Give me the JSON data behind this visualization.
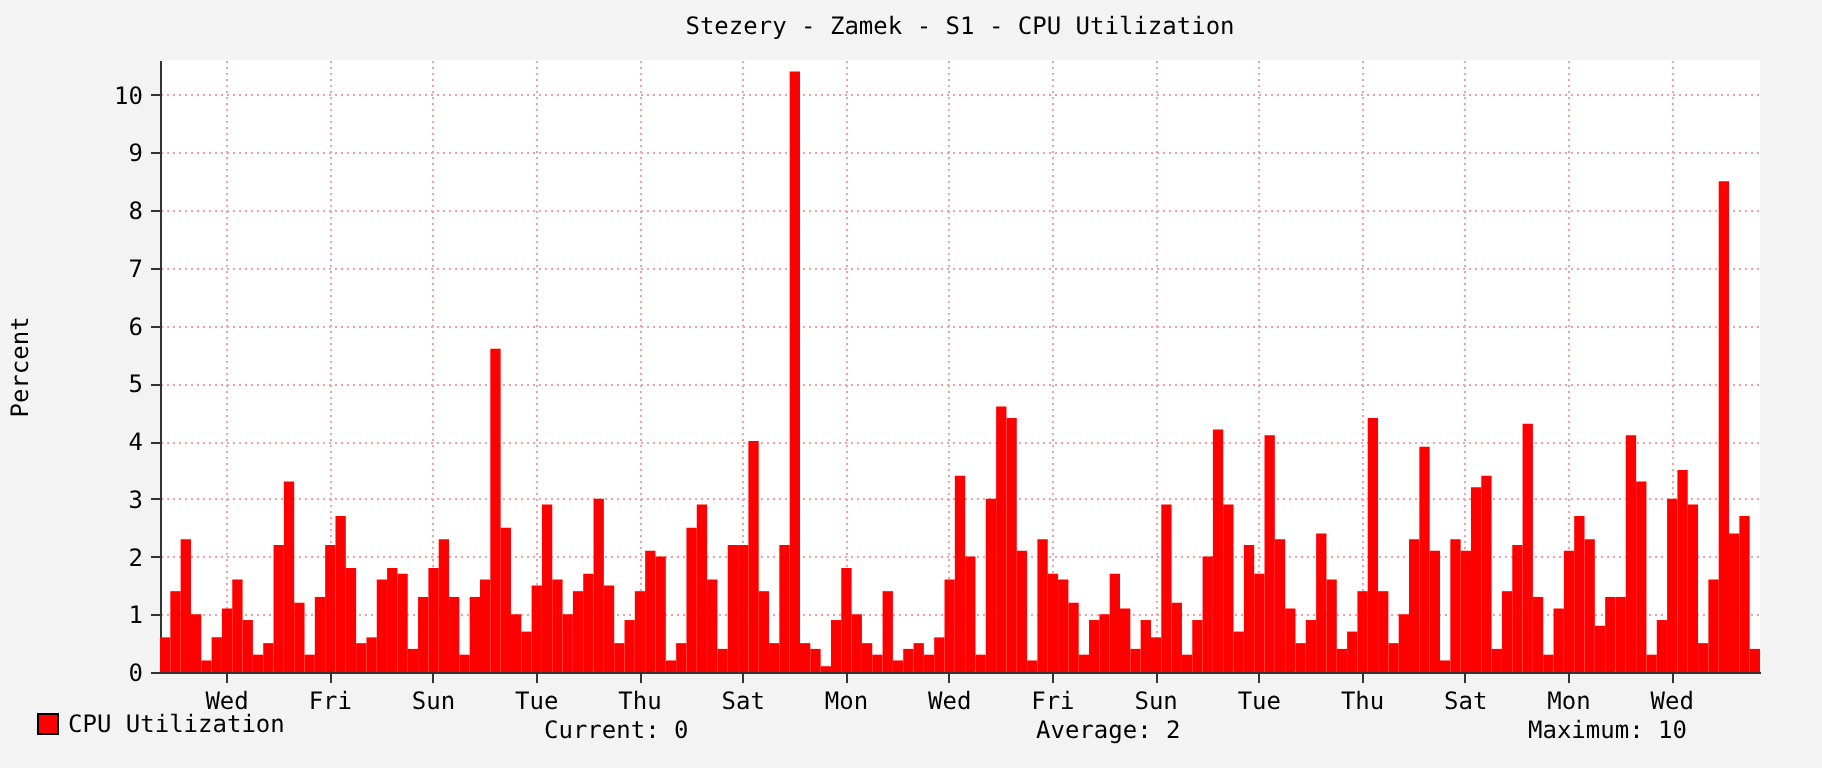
{
  "chart_data": {
    "type": "bar",
    "title": "Stezery - Zamek - S1 - CPU Utilization",
    "ylabel": "Percent",
    "categories": [
      null,
      null,
      null,
      null,
      null,
      null,
      "Wed",
      null,
      null,
      null,
      null,
      null,
      null,
      null,
      null,
      null,
      "Fri",
      null,
      null,
      null,
      null,
      null,
      null,
      null,
      null,
      null,
      "Sun",
      null,
      null,
      null,
      null,
      null,
      null,
      null,
      null,
      null,
      "Tue",
      null,
      null,
      null,
      null,
      null,
      null,
      null,
      null,
      null,
      "Thu",
      null,
      null,
      null,
      null,
      null,
      null,
      null,
      null,
      null,
      "Sat",
      null,
      null,
      null,
      null,
      null,
      null,
      null,
      null,
      null,
      "Mon",
      null,
      null,
      null,
      null,
      null,
      null,
      null,
      null,
      null,
      "Wed",
      null,
      null,
      null,
      null,
      null,
      null,
      null,
      null,
      null,
      "Fri",
      null,
      null,
      null,
      null,
      null,
      null,
      null,
      null,
      null,
      "Sun",
      null,
      null,
      null,
      null,
      null,
      null,
      null,
      null,
      null,
      "Tue",
      null,
      null,
      null,
      null,
      null,
      null,
      null,
      null,
      null,
      "Thu",
      null,
      null,
      null,
      null,
      null,
      null,
      null,
      null,
      null,
      "Sat",
      null,
      null,
      null,
      null,
      null,
      null,
      null,
      null,
      null,
      "Mon",
      null,
      null,
      null,
      null,
      null,
      null,
      null,
      null,
      null,
      "Wed",
      null,
      null,
      null,
      null,
      null,
      null,
      null,
      null
    ],
    "series": [
      {
        "name": "CPU Utilization",
        "color": "#ff0000",
        "values": [
          0.6,
          1.4,
          2.3,
          1.0,
          0.2,
          0.6,
          1.1,
          1.6,
          0.9,
          0.3,
          0.5,
          2.2,
          3.3,
          1.2,
          0.3,
          1.3,
          2.2,
          2.7,
          1.8,
          0.5,
          0.6,
          1.6,
          1.8,
          1.7,
          0.4,
          1.3,
          1.8,
          2.3,
          1.3,
          0.3,
          1.3,
          1.6,
          5.6,
          2.5,
          1.0,
          0.7,
          1.5,
          2.9,
          1.6,
          1.0,
          1.4,
          1.7,
          3.0,
          1.5,
          0.5,
          0.9,
          1.4,
          2.1,
          2.0,
          0.2,
          0.5,
          2.5,
          2.9,
          1.6,
          0.4,
          2.2,
          2.2,
          4.0,
          1.4,
          0.5,
          2.2,
          10.4,
          0.5,
          0.4,
          0.1,
          0.9,
          1.8,
          1.0,
          0.5,
          0.3,
          1.4,
          0.2,
          0.4,
          0.5,
          0.3,
          0.6,
          1.6,
          3.4,
          2.0,
          0.3,
          3.0,
          4.6,
          4.4,
          2.1,
          0.2,
          2.3,
          1.7,
          1.6,
          1.2,
          0.3,
          0.9,
          1.0,
          1.7,
          1.1,
          0.4,
          0.9,
          0.6,
          2.9,
          1.2,
          0.3,
          0.9,
          2.0,
          4.2,
          2.9,
          0.7,
          2.2,
          1.7,
          4.1,
          2.3,
          1.1,
          0.5,
          0.9,
          2.4,
          1.6,
          0.4,
          0.7,
          1.4,
          4.4,
          1.4,
          0.5,
          1.0,
          2.3,
          3.9,
          2.1,
          0.2,
          2.3,
          2.1,
          3.2,
          3.4,
          0.4,
          1.4,
          2.2,
          4.3,
          1.3,
          0.3,
          1.1,
          2.1,
          2.7,
          2.3,
          0.8,
          1.3,
          1.3,
          4.1,
          3.3,
          0.3,
          0.9,
          3.0,
          3.5,
          2.9,
          0.5,
          1.6,
          8.5,
          2.4,
          2.7,
          0.4
        ]
      }
    ],
    "ylim": [
      0,
      10.6
    ],
    "yticks": [
      0,
      1,
      2,
      3,
      4,
      5,
      6,
      7,
      8,
      9,
      10
    ],
    "grid": true,
    "legend": "bottom",
    "annotations": [
      "Current: 0",
      "Average: 2",
      "Maximum: 10"
    ]
  }
}
